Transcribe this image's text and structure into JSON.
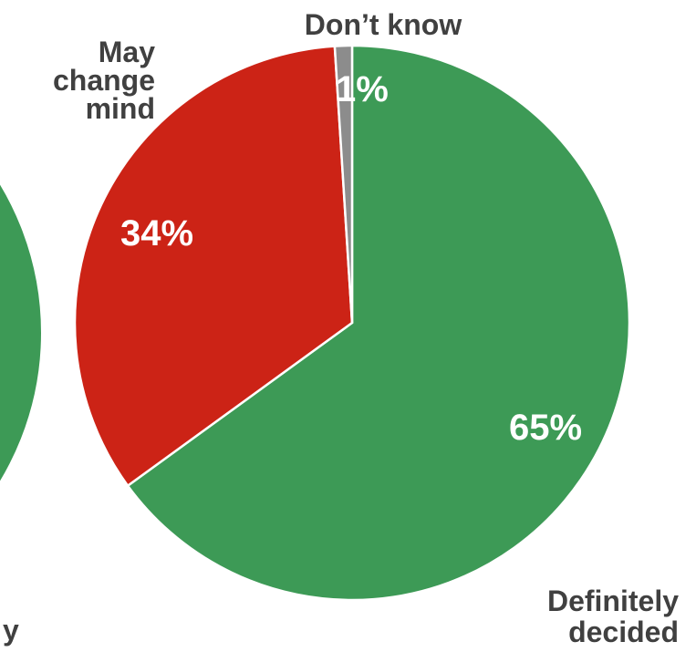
{
  "chart_data": [
    {
      "type": "pie",
      "title": "",
      "categories": [
        "Definitely decided",
        "May change mind",
        "Don’t know"
      ],
      "values": [
        65,
        34,
        1
      ],
      "value_labels": [
        "65%",
        "34%",
        "1%"
      ],
      "colors": [
        "#3d9a56",
        "#cc2316",
        "#8c8c8c"
      ],
      "legend": "none",
      "category_label_lines": [
        [
          "Definitely",
          "decided"
        ],
        [
          "May",
          "change",
          "mind"
        ],
        [
          "Don’t know"
        ]
      ]
    },
    {
      "type": "pie",
      "title": "",
      "note": "partially visible at left edge",
      "colors": [
        "#3d9a56"
      ],
      "visible_text_fragment": "y"
    }
  ]
}
